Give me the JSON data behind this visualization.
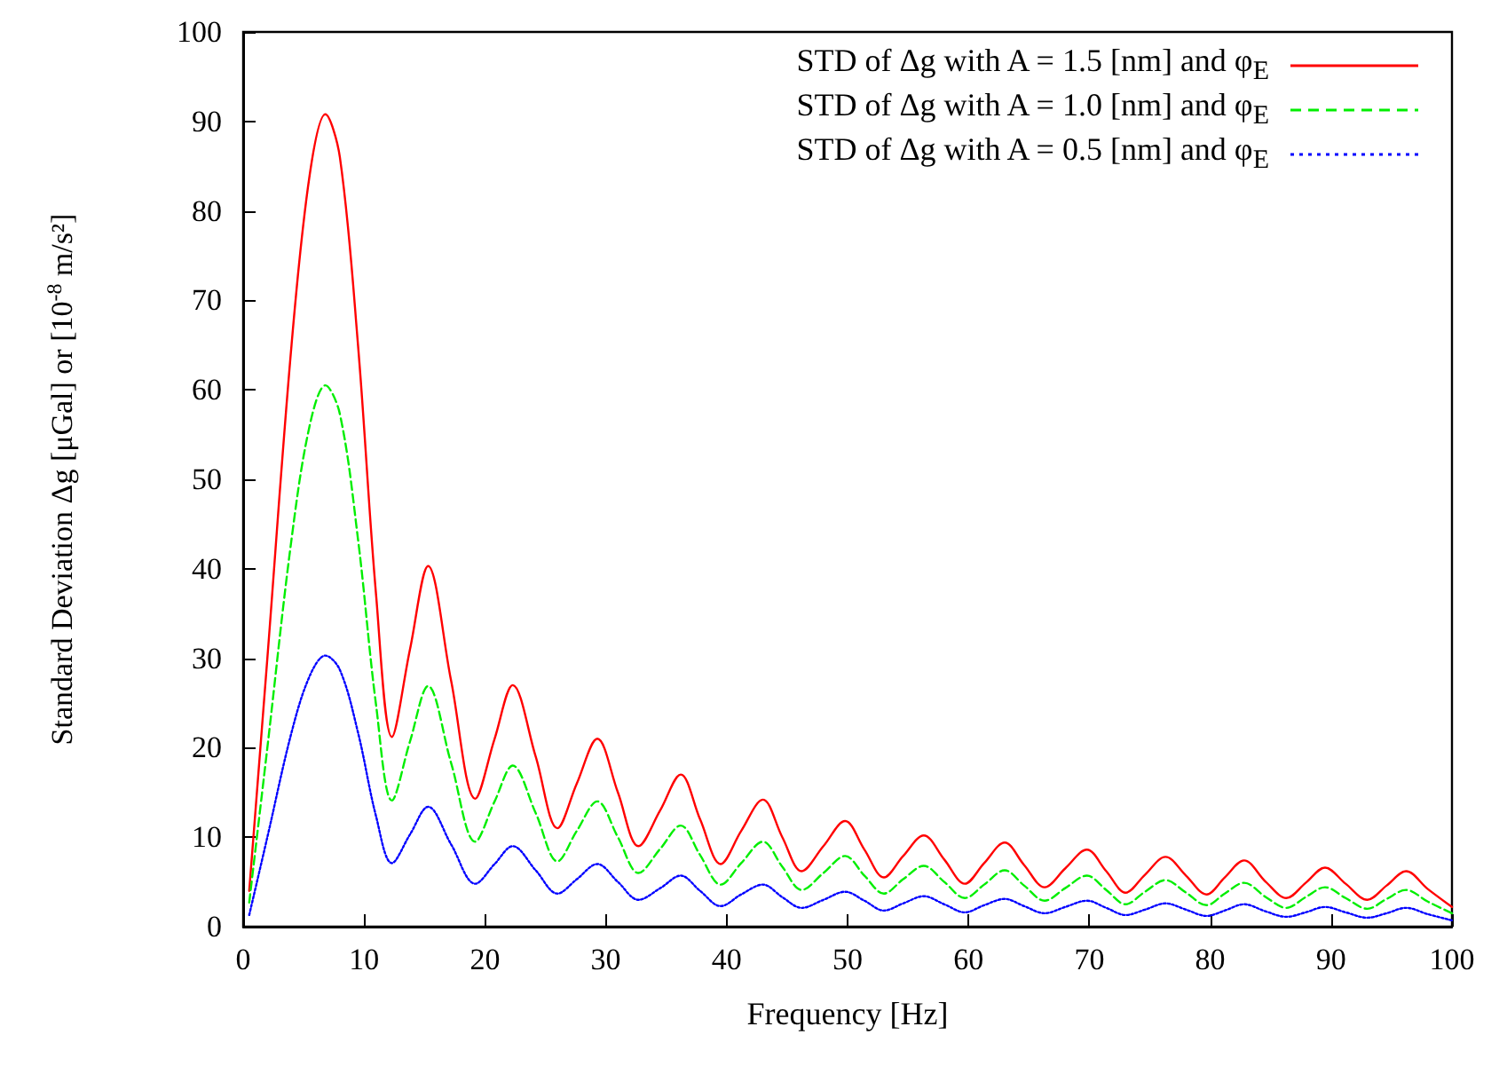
{
  "chart_data": {
    "type": "line",
    "xlabel": "Frequency [Hz]",
    "ylabel": "Standard Deviation Δg [μGal] or [10$^{-8}$ m/s²]",
    "x": [
      0.5,
      2,
      4,
      5.5,
      6.8,
      8,
      9.5,
      11,
      12.3,
      13.8,
      15.3,
      17.2,
      19.2,
      20.8,
      22.3,
      24.2,
      26,
      27.6,
      29.3,
      31,
      32.7,
      34.5,
      36.2,
      37.8,
      39.5,
      41.2,
      43,
      44.6,
      46.2,
      48,
      49.8,
      51.4,
      53,
      54.6,
      56.3,
      58,
      59.7,
      61.3,
      63,
      64.6,
      66.3,
      68,
      69.8,
      71.4,
      73,
      74.6,
      76.3,
      78,
      79.7,
      81.2,
      82.8,
      84.6,
      86.3,
      87.9,
      89.5,
      91.2,
      93,
      94.6,
      96.2,
      98,
      100
    ],
    "series": [
      {
        "name": "STD of Δg with A = 1.5 [nm] and φ$_{E}$",
        "color": "#ff0000",
        "line_style": "solid",
        "values": [
          4,
          30,
          65,
          84,
          90.8,
          86,
          65,
          37,
          21.2,
          31,
          40.3,
          27.5,
          14.3,
          21,
          27,
          19,
          11,
          16,
          21,
          15,
          9,
          13,
          17,
          12,
          7,
          10.7,
          14.2,
          10,
          6.2,
          9,
          11.8,
          8.6,
          5.5,
          7.9,
          10.2,
          7.5,
          4.8,
          7.1,
          9.4,
          6.9,
          4.4,
          6.5,
          8.6,
          6.2,
          3.8,
          5.8,
          7.8,
          5.7,
          3.6,
          5.5,
          7.4,
          5,
          3.2,
          4.9,
          6.6,
          4.8,
          3.0,
          4.6,
          6.2,
          4.2,
          2.2
        ]
      },
      {
        "name": "STD of Δg with A = 1.0 [nm] and φ$_{E}$",
        "color": "#00ee00",
        "line_style": "dashed",
        "values": [
          2.7,
          20,
          43.3,
          56,
          60.5,
          57.3,
          43.3,
          24.7,
          14.1,
          20.7,
          26.9,
          18.3,
          9.5,
          14,
          18,
          12.7,
          7.3,
          10.7,
          14,
          10,
          6,
          8.7,
          11.3,
          8,
          4.7,
          7.1,
          9.5,
          6.7,
          4.1,
          6,
          7.9,
          5.7,
          3.7,
          5.3,
          6.8,
          5,
          3.2,
          4.7,
          6.3,
          4.6,
          2.9,
          4.3,
          5.7,
          4.1,
          2.5,
          3.9,
          5.2,
          3.8,
          2.4,
          3.7,
          4.9,
          3.3,
          2.1,
          3.3,
          4.4,
          3.2,
          2,
          3.1,
          4.1,
          2.8,
          1.5
        ]
      },
      {
        "name": "STD of Δg with A = 0.5 [nm] and φ$_{E}$",
        "color": "#0000ff",
        "line_style": "dotted",
        "values": [
          1.3,
          10,
          21.7,
          28,
          30.3,
          28.7,
          21.7,
          12.3,
          7.1,
          10.3,
          13.4,
          9.2,
          4.8,
          7,
          9,
          6.3,
          3.7,
          5.3,
          7,
          5,
          3,
          4.3,
          5.7,
          4,
          2.3,
          3.6,
          4.7,
          3.3,
          2.1,
          3,
          3.9,
          2.9,
          1.8,
          2.6,
          3.4,
          2.5,
          1.6,
          2.4,
          3.1,
          2.3,
          1.5,
          2.2,
          2.9,
          2.1,
          1.3,
          1.9,
          2.6,
          1.9,
          1.2,
          1.8,
          2.5,
          1.7,
          1.1,
          1.6,
          2.2,
          1.6,
          1,
          1.5,
          2.1,
          1.4,
          0.7
        ]
      }
    ],
    "xlim": [
      0,
      100
    ],
    "xticks": [
      0,
      10,
      20,
      30,
      40,
      50,
      60,
      70,
      80,
      90,
      100
    ],
    "ylim": [
      0,
      100
    ],
    "yticks": [
      0,
      10,
      20,
      30,
      40,
      50,
      60,
      70,
      80,
      90,
      100
    ],
    "grid": false,
    "legend": "top right",
    "marker": "none"
  }
}
